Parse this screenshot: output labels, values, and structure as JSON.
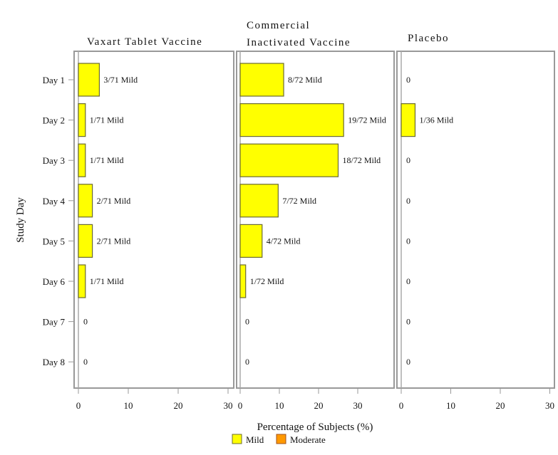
{
  "chart_data": {
    "type": "bar",
    "orientation": "horizontal",
    "ylabel": "Study Day",
    "xlabel": "Percentage of Subjects (%)",
    "categories": [
      "Day 1",
      "Day 2",
      "Day 3",
      "Day 4",
      "Day 5",
      "Day 6",
      "Day 7",
      "Day 8"
    ],
    "legend": {
      "placement": "bottom",
      "items": [
        {
          "name": "Mild",
          "color": "#ffff00"
        },
        {
          "name": "Moderate",
          "color": "#ff9900"
        }
      ]
    },
    "panels": [
      {
        "title": [
          "Vaxart Tablet Vaccine"
        ],
        "xlim": [
          0,
          30
        ],
        "xticks": [
          "0",
          "10",
          "20",
          "30"
        ],
        "series": [
          {
            "name": "Mild",
            "values": [
              4.2,
              1.4,
              1.4,
              2.8,
              2.8,
              1.4,
              0,
              0
            ]
          }
        ],
        "labels": [
          "3/71 Mild",
          "1/71 Mild",
          "1/71 Mild",
          "2/71 Mild",
          "2/71 Mild",
          "1/71 Mild",
          "0",
          "0"
        ]
      },
      {
        "title": [
          "Commercial",
          "Inactivated Vaccine"
        ],
        "xlim": [
          0,
          39
        ],
        "xticks": [
          "0",
          "10",
          "20",
          "30"
        ],
        "series": [
          {
            "name": "Mild",
            "values": [
              11.1,
              26.4,
              25.0,
              9.7,
              5.6,
              1.4,
              0,
              0
            ]
          }
        ],
        "labels": [
          "8/72 Mild",
          "19/72 Mild",
          "18/72 Mild",
          "7/72 Mild",
          "4/72 Mild",
          "1/72 Mild",
          "0",
          "0"
        ]
      },
      {
        "title": [
          "Placebo"
        ],
        "xlim": [
          0,
          31
        ],
        "xticks": [
          "0",
          "10",
          "20",
          "30"
        ],
        "series": [
          {
            "name": "Mild",
            "values": [
              0,
              2.8,
              0,
              0,
              0,
              0,
              0,
              0
            ]
          }
        ],
        "labels": [
          "0",
          "1/36 Mild",
          "0",
          "0",
          "0",
          "0",
          "0",
          "0"
        ]
      }
    ]
  }
}
